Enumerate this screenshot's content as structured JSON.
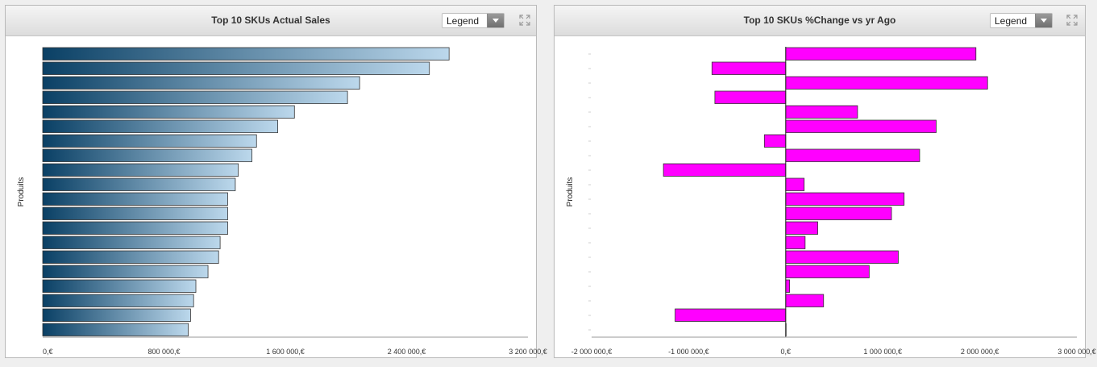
{
  "panels": {
    "left": {
      "title": "Top 10 SKUs Actual Sales",
      "legend_label": "Legend"
    },
    "right": {
      "title": "Top 10 SKUs %Change vs yr Ago",
      "legend_label": "Legend"
    }
  },
  "chart_data": [
    {
      "type": "bar",
      "orientation": "horizontal",
      "title": "Top 10 SKUs Actual Sales",
      "ylabel": "Produits",
      "xlabel": "",
      "xlim": [
        0,
        3200000
      ],
      "tick_values": [
        0,
        800000,
        1600000,
        2400000,
        3200000
      ],
      "tick_labels": [
        "0,€",
        "800 000,€",
        "1 600 000,€",
        "2 400 000,€",
        "3 200 000,€"
      ],
      "values": [
        2680000,
        2550000,
        2090000,
        2010000,
        1660000,
        1550000,
        1410000,
        1380000,
        1290000,
        1270000,
        1220000,
        1220000,
        1220000,
        1170000,
        1160000,
        1090000,
        1010000,
        995000,
        975000,
        960000
      ],
      "bar_gradient": [
        "#0a4065",
        "#bcd8ec"
      ]
    },
    {
      "type": "bar",
      "orientation": "horizontal",
      "title": "Top 10 SKUs %Change vs yr Ago",
      "ylabel": "Produits",
      "xlabel": "",
      "xlim": [
        -2000000,
        3000000
      ],
      "tick_values": [
        -2000000,
        -1000000,
        0,
        1000000,
        2000000,
        3000000
      ],
      "tick_labels": [
        "-2 000 000,€",
        "-1 000 000,€",
        "0,€",
        "1 000 000,€",
        "2 000 000,€",
        "3 000 000,€"
      ],
      "values": [
        1960000,
        -760000,
        2080000,
        -730000,
        740000,
        1550000,
        -220000,
        1380000,
        -1260000,
        190000,
        1220000,
        1090000,
        330000,
        200000,
        1160000,
        860000,
        40000,
        390000,
        -1140000,
        0
      ],
      "bar_color": "#ff00ff"
    }
  ]
}
